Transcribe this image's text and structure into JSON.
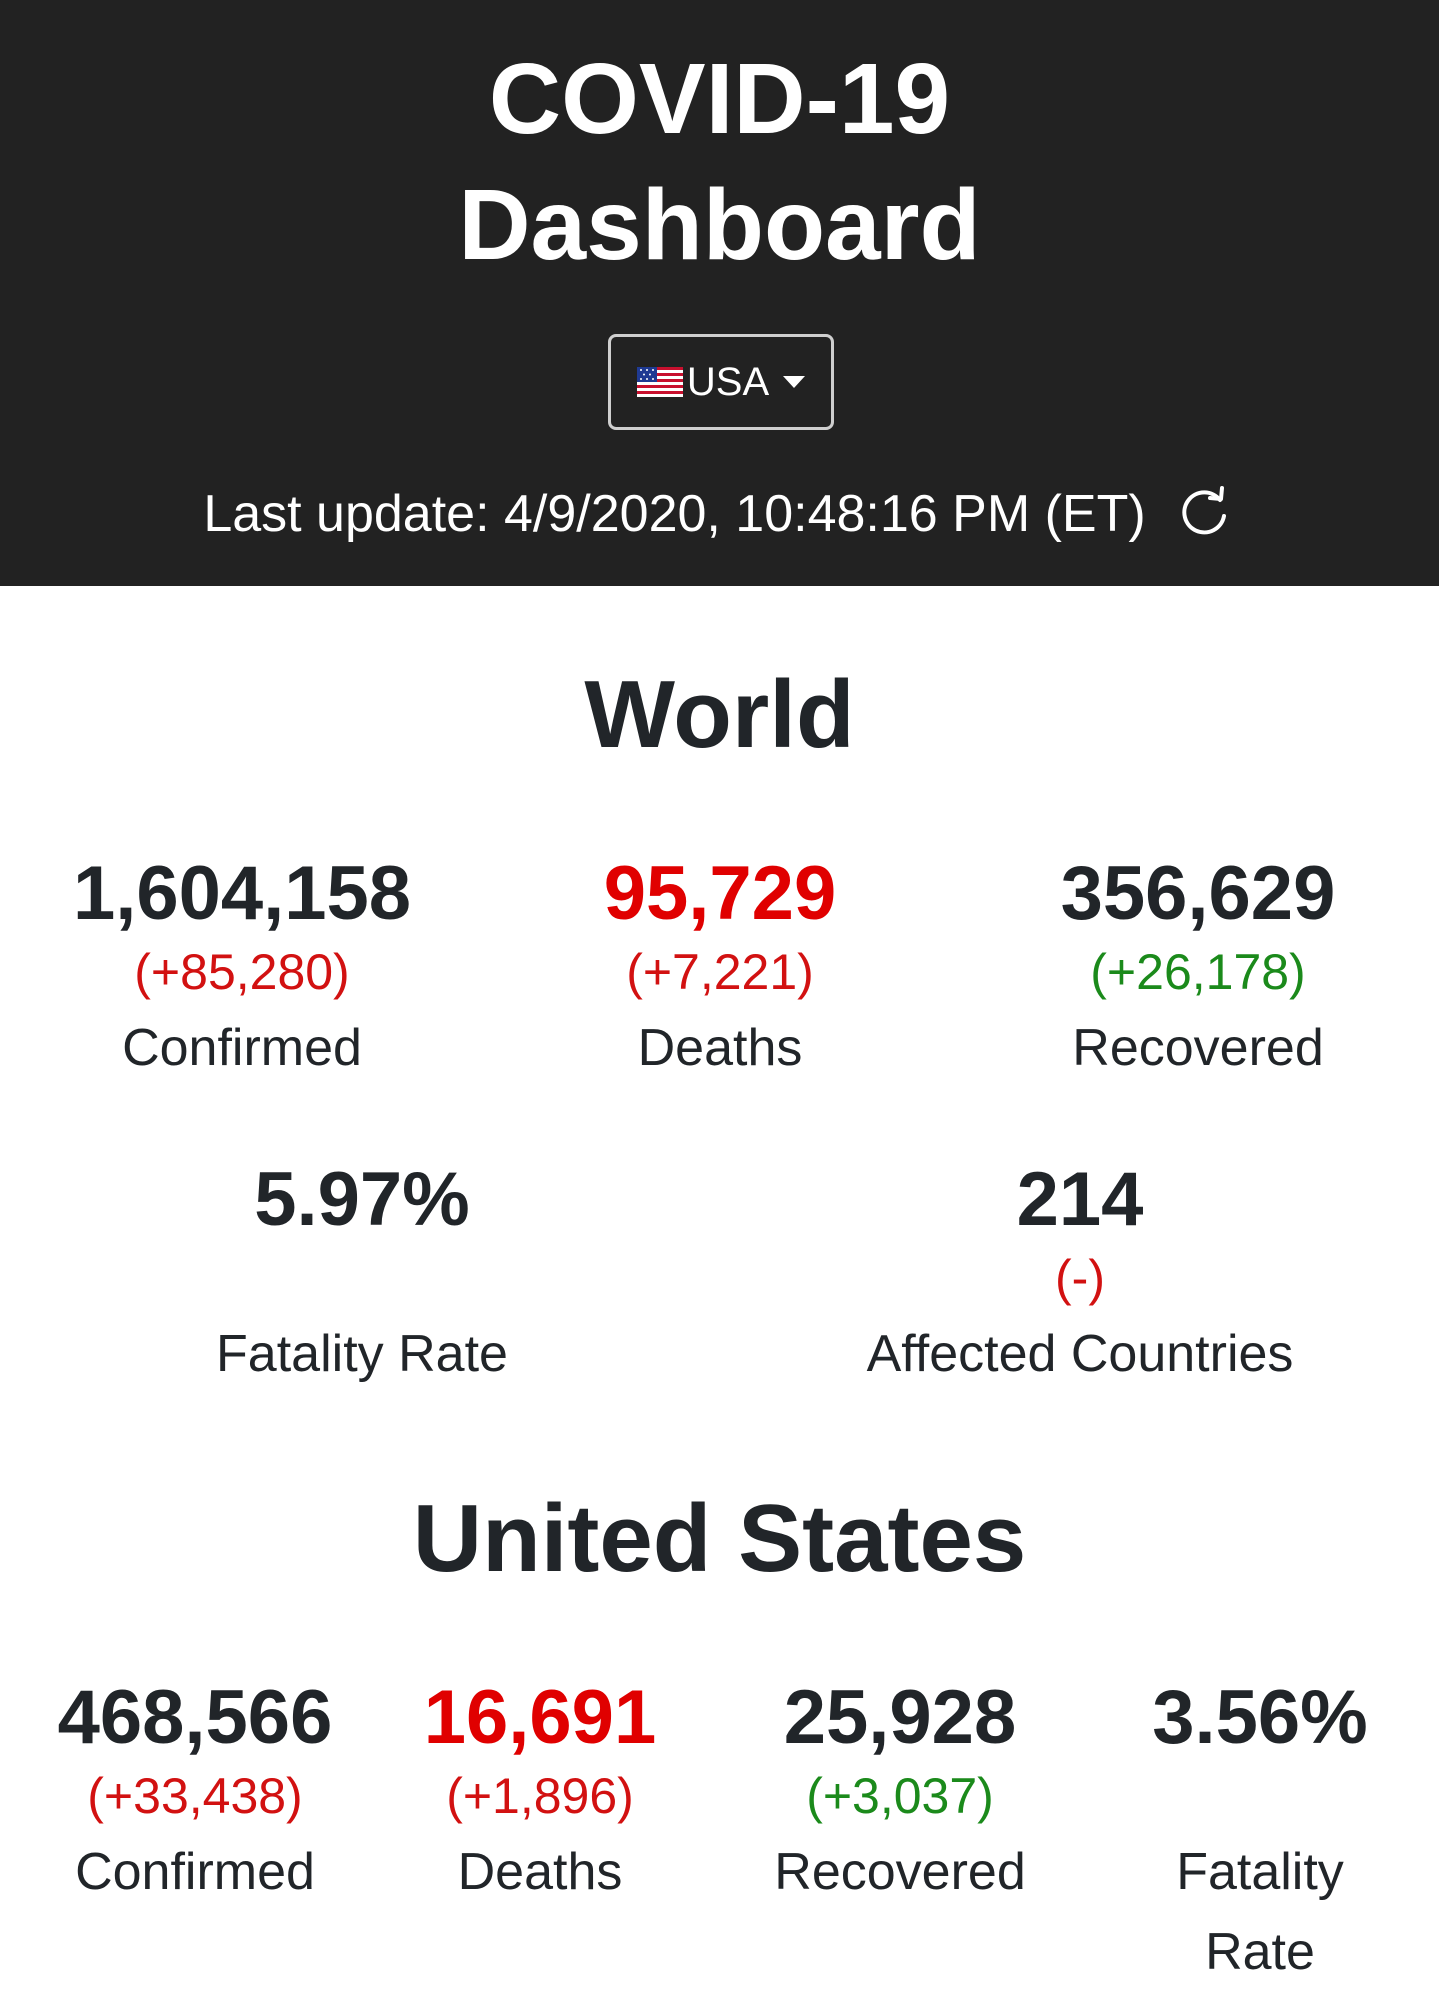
{
  "header": {
    "title_line1": "COVID-19",
    "title_line2": "Dashboard",
    "country_select": {
      "selected": "USA",
      "flag_icon": "us-flag-icon"
    },
    "last_update": "Last update: 4/9/2020, 10:48:16 PM (ET)",
    "refresh_icon": "refresh-icon"
  },
  "world": {
    "title": "World",
    "confirmed": {
      "value": "1,604,158",
      "delta": "(+85,280)",
      "label": "Confirmed"
    },
    "deaths": {
      "value": "95,729",
      "delta": "(+7,221)",
      "label": "Deaths"
    },
    "recovered": {
      "value": "356,629",
      "delta": "(+26,178)",
      "label": "Recovered"
    },
    "fatality_rate": {
      "value": "5.97%",
      "label": "Fatality Rate"
    },
    "affected_countries": {
      "value": "214",
      "delta": "(-)",
      "label": "Affected Countries"
    }
  },
  "us": {
    "title": "United States",
    "confirmed": {
      "value": "468,566",
      "delta": "(+33,438)",
      "label": "Confirmed"
    },
    "deaths": {
      "value": "16,691",
      "delta": "(+1,896)",
      "label": "Deaths"
    },
    "recovered": {
      "value": "25,928",
      "delta": "(+3,037)",
      "label": "Recovered"
    },
    "fatality_rate": {
      "value": "3.56%",
      "label_line1": "Fatality",
      "label_line2": "Rate"
    }
  },
  "colors": {
    "header_bg": "#222222",
    "deaths": "#e00000",
    "increase": "#d21111",
    "recovered_delta": "#1b8a1b"
  }
}
